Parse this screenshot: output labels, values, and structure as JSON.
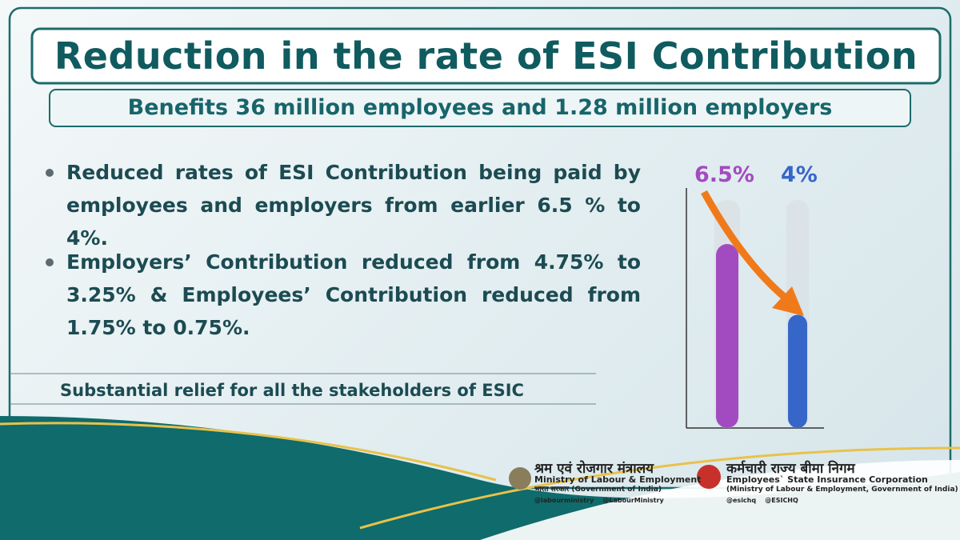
{
  "header": {
    "title": "Reduction in the rate of ESI Contribution",
    "subtitle": "Benefits 36 million employees and 1.28 million employers"
  },
  "bullets": [
    "Reduced rates of ESI Contribution being paid by employees and employers from earlier 6.5 % to 4%.",
    "Employers’ Contribution reduced from 4.75% to 3.25% & Employees’ Contribution reduced from 1.75% to 0.75%."
  ],
  "footer_note": "Substantial relief for all the stakeholders of ESIC",
  "chart_data": {
    "type": "bar",
    "categories": [
      null,
      null
    ],
    "values": [
      6.5,
      4
    ],
    "value_labels": [
      "6.5%",
      "4%"
    ],
    "colors": [
      "#a24bc0",
      "#3766c9"
    ]
  },
  "logos": {
    "ministry": {
      "hindi": "श्रम एवं रोजगार मंत्रालय",
      "english": "Ministry of Labour & Employment",
      "govt": "भारत सरकार (Government of India)",
      "twitter": "@labourministry",
      "facebook": "@LabourMinistry"
    },
    "esic": {
      "hindi": "कर्मचारी राज्य बीमा निगम",
      "english": "Employees` State Insurance Corporation",
      "sub": "(Ministry of Labour & Employment, Government of India)",
      "twitter": "@esichq",
      "facebook": "@ESICHQ"
    }
  }
}
